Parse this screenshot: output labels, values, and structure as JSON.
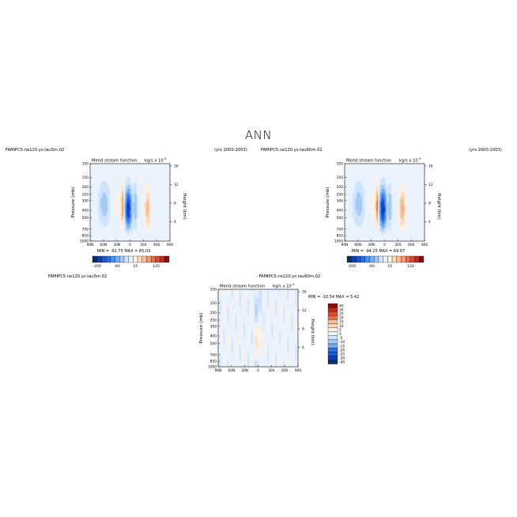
{
  "page": {
    "title": "ANN"
  },
  "palette": {
    "axis": "#000000",
    "colors": [
      "#08306b",
      "#0a3fb5",
      "#1a57d6",
      "#2e6fe6",
      "#4f8ff0",
      "#74aef5",
      "#a3c9f7",
      "#cfe3fb",
      "#eaf3fd",
      "#fdf1e4",
      "#fbdcbf",
      "#f8be99",
      "#f39a72",
      "#ea6e4c",
      "#dc4a30",
      "#c02a1c",
      "#8b0d0b"
    ]
  },
  "chart_data": [
    {
      "id": "panel-1",
      "type": "heatmap",
      "case_label": "FAMIPC5.ne120.ys.tau5m.02",
      "years_label": "(yrs 2000-2003)",
      "title": "Merid stream function",
      "units_label": "kg/s x 10",
      "units_exp": "9",
      "ylabel": "Pressure (mb)",
      "ylabel_right": "Height (km)",
      "x_ticks": [
        "90N",
        "60N",
        "30N",
        "0",
        "30S",
        "60S",
        "90S"
      ],
      "y_ticks": [
        "100",
        "150",
        "200",
        "250",
        "300",
        "400",
        "500",
        "700",
        "850",
        "1000"
      ],
      "y_ticks_right": [
        "16",
        "12",
        "8",
        "4"
      ],
      "min_max": "MIN = -92.75    MAX = 65.03",
      "min": -92.75,
      "max": 65.03,
      "colorbar_ticks": [
        "-200",
        "-60",
        "15",
        "120"
      ],
      "features": [
        {
          "lat": 28,
          "depth": 0.55,
          "width": 8,
          "value": 8
        },
        {
          "lat": 16,
          "depth": 0.6,
          "width": 4,
          "value": 60
        },
        {
          "lat": 4,
          "depth": 0.65,
          "width": 8,
          "value": -90
        },
        {
          "lat": -12,
          "depth": 0.6,
          "width": 4,
          "value": -30
        },
        {
          "lat": -40,
          "depth": 0.65,
          "width": 7,
          "value": 40
        },
        {
          "lat": 58,
          "depth": 0.55,
          "width": 12,
          "value": -25
        }
      ]
    },
    {
      "id": "panel-2",
      "type": "heatmap",
      "case_label": "FAMIPC5.ne120.ys.tau60m.02",
      "years_label": "(yrs 2000-2003)",
      "title": "Merid stream function",
      "units_label": "kg/s x 10",
      "units_exp": "9",
      "ylabel": "Pressure (mb)",
      "ylabel_right": "Height (km)",
      "x_ticks": [
        "90N",
        "60N",
        "30N",
        "0",
        "30S",
        "60S",
        "90S"
      ],
      "y_ticks": [
        "100",
        "150",
        "200",
        "250",
        "300",
        "400",
        "500",
        "700",
        "850",
        "1000"
      ],
      "y_ticks_right": [
        "16",
        "12",
        "8",
        "4"
      ],
      "min_max": "MIN = -94.25    MAX = 69.67",
      "min": -94.25,
      "max": 69.67,
      "colorbar_ticks": [
        "-200",
        "-60",
        "15",
        "120"
      ],
      "features": [
        {
          "lat": 28,
          "depth": 0.55,
          "width": 8,
          "value": 8
        },
        {
          "lat": 16,
          "depth": 0.6,
          "width": 4,
          "value": 65
        },
        {
          "lat": 4,
          "depth": 0.65,
          "width": 8,
          "value": -92
        },
        {
          "lat": -12,
          "depth": 0.6,
          "width": 4,
          "value": -30
        },
        {
          "lat": -40,
          "depth": 0.65,
          "width": 7,
          "value": 45
        },
        {
          "lat": 58,
          "depth": 0.55,
          "width": 12,
          "value": -25
        }
      ]
    },
    {
      "id": "panel-3",
      "type": "heatmap",
      "case_label": "FAMIPC5.ne120.ys.tau5m.02",
      "diff_label": "-  FAMIPC5.ne120.ys.tau60m.02",
      "title": "Merid stream function",
      "units_label": "kg/s x 10",
      "units_exp": "9",
      "ylabel": "Pressure (mb)",
      "ylabel_right": "Height (km)",
      "x_ticks": [
        "90N",
        "60N",
        "30N",
        "0",
        "30S",
        "60S",
        "90S"
      ],
      "y_ticks": [
        "100",
        "150",
        "200",
        "250",
        "300",
        "400",
        "500",
        "700",
        "850",
        "1000"
      ],
      "y_ticks_right": [
        "16",
        "12",
        "8",
        "4"
      ],
      "min_max": "MIN = -10.54    MAX =  5.42",
      "min": -10.54,
      "max": 5.42,
      "colorbar_ticks": [
        "40",
        "30",
        "25",
        "20",
        "15",
        "10",
        "5",
        "0",
        "-5",
        "-10",
        "-15",
        "-20",
        "-25",
        "-30",
        "-40"
      ]
    }
  ]
}
